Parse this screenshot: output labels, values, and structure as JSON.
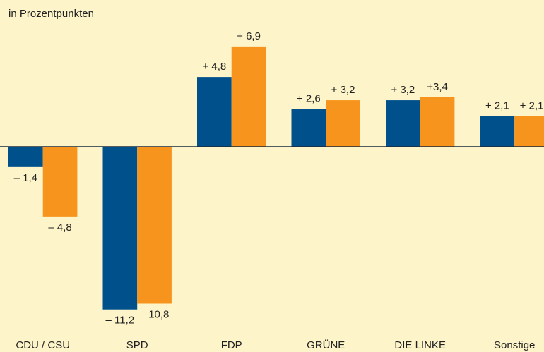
{
  "chart_data": {
    "type": "bar",
    "subtitle": "in Prozentpunkten",
    "categories": [
      "CDU / CSU",
      "SPD",
      "FDP",
      "GRÜNE",
      "DIE LINKE",
      "Sonstige"
    ],
    "series": [
      {
        "color": "#00508c",
        "values": [
          -1.4,
          -11.2,
          4.8,
          2.6,
          3.2,
          2.1
        ],
        "value_labels": [
          "– 1,4",
          "– 11,2",
          "+ 4,8",
          "+ 2,6",
          "+ 3,2",
          "+ 2,1"
        ]
      },
      {
        "color": "#f7941d",
        "values": [
          -4.8,
          -10.8,
          6.9,
          3.2,
          3.4,
          2.1
        ],
        "value_labels": [
          "– 4,8",
          "– 10,8",
          "+ 6,9",
          "+ 3,2",
          "+3,4",
          "+ 2,1"
        ]
      }
    ]
  }
}
